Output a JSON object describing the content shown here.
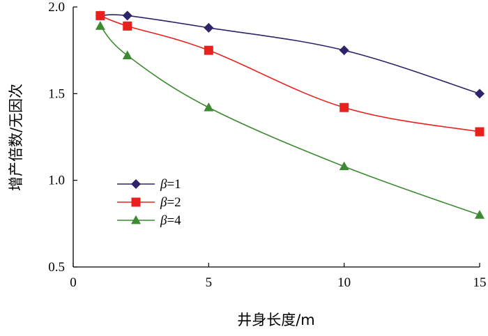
{
  "chart_data": {
    "type": "line",
    "xlabel": "井身长度/m",
    "ylabel": "增产倍数/无因次",
    "xlim": [
      0,
      15
    ],
    "ylim": [
      0.5,
      2.0
    ],
    "xticks": [
      "0",
      "5",
      "10",
      "15"
    ],
    "yticks": [
      "0.5",
      "1.0",
      "1.5",
      "2.0"
    ],
    "grid": false,
    "legend_position": "left-middle",
    "series": [
      {
        "name": "β=1",
        "legend_symbol": "β",
        "legend_value": "=1",
        "color": "#2b2468",
        "marker": "diamond",
        "x": [
          1,
          2,
          5,
          10,
          15
        ],
        "y": [
          1.95,
          1.95,
          1.88,
          1.75,
          1.5
        ]
      },
      {
        "name": "β=2",
        "legend_symbol": "β",
        "legend_value": "=2",
        "color": "#e8201e",
        "marker": "square",
        "x": [
          1,
          2,
          5,
          10,
          15
        ],
        "y": [
          1.95,
          1.89,
          1.75,
          1.42,
          1.28
        ]
      },
      {
        "name": "β=4",
        "legend_symbol": "β",
        "legend_value": "=4",
        "color": "#3d8a33",
        "marker": "triangle",
        "x": [
          1,
          2,
          5,
          10,
          15
        ],
        "y": [
          1.89,
          1.72,
          1.42,
          1.08,
          0.8
        ]
      }
    ]
  }
}
